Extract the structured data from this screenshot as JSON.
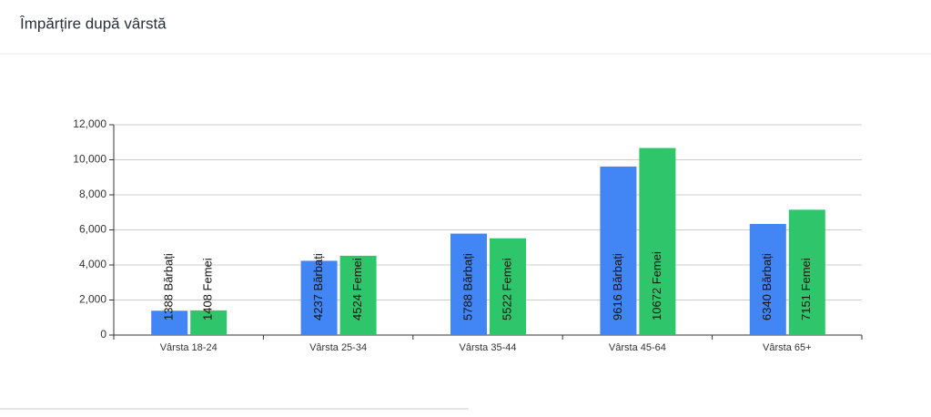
{
  "chart_data": {
    "type": "bar",
    "title": "Împărțire după vârstă",
    "categories": [
      "Vârsta 18-24",
      "Vârsta 25-34",
      "Vârsta 35-44",
      "Vârsta 45-64",
      "Vârsta 65+"
    ],
    "series": [
      {
        "color": "#4285f4",
        "values": [
          1388,
          4237,
          5788,
          9616,
          6340
        ],
        "value_labels": [
          "1388 Bărbați",
          "4237 Bărbați",
          "5788 Bărbați",
          "9616 Bărbați",
          "6340 Bărbați"
        ]
      },
      {
        "color": "#2ec56b",
        "values": [
          1408,
          4524,
          5522,
          10672,
          7151
        ],
        "value_labels": [
          "1408 Femei",
          "4524 Femei",
          "5522 Femei",
          "10672 Femei",
          "7151 Femei"
        ]
      }
    ],
    "ylim": [
      0,
      12000
    ],
    "yticks": [
      0,
      {
        "value": 2000,
        "label": "2,000"
      },
      {
        "value": 4000,
        "label": "4,000"
      },
      {
        "value": 6000,
        "label": "6,000"
      },
      {
        "value": 8000,
        "label": "8,000"
      },
      {
        "value": 10000,
        "label": "10,000"
      },
      {
        "value": 12000,
        "label": "12,000"
      }
    ],
    "grid": true
  }
}
